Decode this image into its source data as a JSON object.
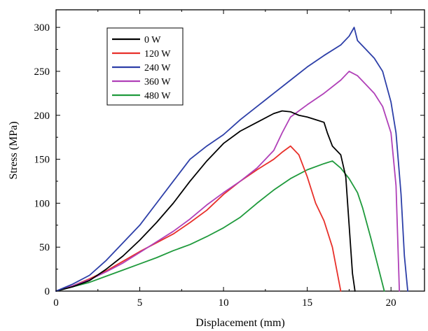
{
  "chart_data": {
    "type": "line",
    "title": "",
    "xlabel": "Displacement (mm)",
    "ylabel": "Stress (MPa)",
    "xlim": [
      0,
      22
    ],
    "ylim": [
      0,
      320
    ],
    "xticks": [
      0,
      5,
      10,
      15,
      20
    ],
    "yticks": [
      0,
      50,
      100,
      150,
      200,
      250,
      300
    ],
    "xtick_labels": [
      "0",
      "5",
      "10",
      "15",
      "20"
    ],
    "ytick_labels": [
      "0",
      "50",
      "100",
      "150",
      "200",
      "250",
      "300"
    ],
    "grid": false,
    "legend_position": "top-left",
    "series": [
      {
        "name": "0 W",
        "color": "#000000",
        "points": [
          [
            0,
            0
          ],
          [
            1,
            5
          ],
          [
            2,
            12
          ],
          [
            3,
            25
          ],
          [
            4,
            40
          ],
          [
            5,
            58
          ],
          [
            6,
            78
          ],
          [
            7,
            100
          ],
          [
            8,
            125
          ],
          [
            9,
            148
          ],
          [
            10,
            168
          ],
          [
            11,
            182
          ],
          [
            12,
            192
          ],
          [
            13,
            202
          ],
          [
            13.5,
            205
          ],
          [
            14,
            204
          ],
          [
            14.5,
            200
          ],
          [
            15,
            198
          ],
          [
            15.5,
            195
          ],
          [
            16,
            192
          ],
          [
            16.2,
            180
          ],
          [
            16.5,
            165
          ],
          [
            17,
            155
          ],
          [
            17.3,
            130
          ],
          [
            17.5,
            75
          ],
          [
            17.7,
            20
          ],
          [
            17.85,
            0
          ]
        ]
      },
      {
        "name": "120 W",
        "color": "#e8302a",
        "points": [
          [
            0,
            0
          ],
          [
            1,
            6
          ],
          [
            2,
            14
          ],
          [
            3,
            23
          ],
          [
            4,
            34
          ],
          [
            5,
            45
          ],
          [
            6,
            55
          ],
          [
            7,
            65
          ],
          [
            8,
            78
          ],
          [
            9,
            92
          ],
          [
            10,
            110
          ],
          [
            11,
            125
          ],
          [
            12,
            138
          ],
          [
            13,
            150
          ],
          [
            13.5,
            158
          ],
          [
            14,
            165
          ],
          [
            14.5,
            155
          ],
          [
            15,
            130
          ],
          [
            15.5,
            100
          ],
          [
            16,
            80
          ],
          [
            16.5,
            50
          ],
          [
            17,
            0
          ]
        ]
      },
      {
        "name": "240 W",
        "color": "#2d3fa8",
        "points": [
          [
            0,
            0
          ],
          [
            1,
            8
          ],
          [
            2,
            18
          ],
          [
            3,
            35
          ],
          [
            4,
            55
          ],
          [
            5,
            75
          ],
          [
            6,
            100
          ],
          [
            7,
            125
          ],
          [
            8,
            150
          ],
          [
            9,
            165
          ],
          [
            10,
            178
          ],
          [
            11,
            195
          ],
          [
            12,
            210
          ],
          [
            13,
            225
          ],
          [
            14,
            240
          ],
          [
            15,
            255
          ],
          [
            16,
            268
          ],
          [
            17,
            280
          ],
          [
            17.5,
            290
          ],
          [
            17.8,
            300
          ],
          [
            18,
            285
          ],
          [
            18.5,
            275
          ],
          [
            19,
            265
          ],
          [
            19.5,
            250
          ],
          [
            20,
            215
          ],
          [
            20.3,
            180
          ],
          [
            20.6,
            110
          ],
          [
            20.8,
            40
          ],
          [
            21,
            0
          ]
        ]
      },
      {
        "name": "360 W",
        "color": "#b040b8",
        "points": [
          [
            0,
            0
          ],
          [
            1,
            6
          ],
          [
            2,
            13
          ],
          [
            3,
            22
          ],
          [
            4,
            32
          ],
          [
            5,
            44
          ],
          [
            6,
            56
          ],
          [
            7,
            68
          ],
          [
            8,
            82
          ],
          [
            9,
            98
          ],
          [
            10,
            112
          ],
          [
            11,
            125
          ],
          [
            12,
            140
          ],
          [
            13,
            160
          ],
          [
            13.5,
            180
          ],
          [
            14,
            198
          ],
          [
            15,
            212
          ],
          [
            16,
            225
          ],
          [
            17,
            240
          ],
          [
            17.5,
            250
          ],
          [
            18,
            245
          ],
          [
            18.5,
            235
          ],
          [
            19,
            225
          ],
          [
            19.5,
            210
          ],
          [
            20,
            180
          ],
          [
            20.3,
            120
          ],
          [
            20.5,
            0
          ]
        ]
      },
      {
        "name": "480 W",
        "color": "#1f9a3c",
        "points": [
          [
            0,
            0
          ],
          [
            1,
            5
          ],
          [
            2,
            10
          ],
          [
            3,
            17
          ],
          [
            4,
            24
          ],
          [
            5,
            31
          ],
          [
            6,
            38
          ],
          [
            7,
            46
          ],
          [
            8,
            53
          ],
          [
            9,
            62
          ],
          [
            10,
            72
          ],
          [
            11,
            84
          ],
          [
            12,
            100
          ],
          [
            13,
            115
          ],
          [
            14,
            128
          ],
          [
            15,
            138
          ],
          [
            16,
            145
          ],
          [
            16.5,
            148
          ],
          [
            17,
            140
          ],
          [
            17.5,
            128
          ],
          [
            18,
            112
          ],
          [
            18.3,
            95
          ],
          [
            18.8,
            60
          ],
          [
            19.2,
            30
          ],
          [
            19.6,
            0
          ]
        ]
      }
    ]
  }
}
